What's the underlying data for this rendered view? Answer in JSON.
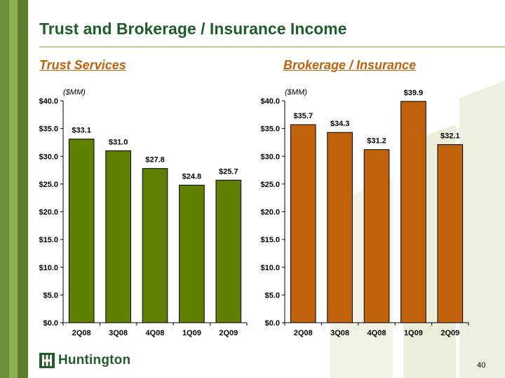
{
  "page": {
    "title": "Trust and Brokerage / Insurance Income",
    "page_number": "40",
    "logo_text": "Huntington"
  },
  "colors": {
    "title": "#1f5d2a",
    "subtitle": "#c0620b",
    "trust_bar": "#5f8000",
    "brokerage_bar": "#c0620b"
  },
  "chart_data": [
    {
      "type": "bar",
      "title": "Trust Services",
      "unit_label": "($MM)",
      "categories": [
        "2Q08",
        "3Q08",
        "4Q08",
        "1Q09",
        "2Q09"
      ],
      "values": [
        33.1,
        31.0,
        27.8,
        24.8,
        25.7
      ],
      "data_labels": [
        "$33.1",
        "$31.0",
        "$27.8",
        "$24.8",
        "$25.7"
      ],
      "ylim": [
        0,
        40
      ],
      "yticks": [
        "$0.0",
        "$5.0",
        "$10.0",
        "$15.0",
        "$20.0",
        "$25.0",
        "$30.0",
        "$35.0",
        "$40.0"
      ],
      "grid": false,
      "color": "#5f8000"
    },
    {
      "type": "bar",
      "title": "Brokerage / Insurance",
      "unit_label": "($MM)",
      "categories": [
        "2Q08",
        "3Q08",
        "4Q08",
        "1Q09",
        "2Q09"
      ],
      "values": [
        35.7,
        34.3,
        31.2,
        39.9,
        32.1
      ],
      "data_labels": [
        "$35.7",
        "$34.3",
        "$31.2",
        "$39.9",
        "$32.1"
      ],
      "ylim": [
        0,
        40
      ],
      "yticks": [
        "$0.0",
        "$5.0",
        "$10.0",
        "$15.0",
        "$20.0",
        "$25.0",
        "$30.0",
        "$35.0",
        "$40.0"
      ],
      "grid": false,
      "color": "#c0620b"
    }
  ]
}
